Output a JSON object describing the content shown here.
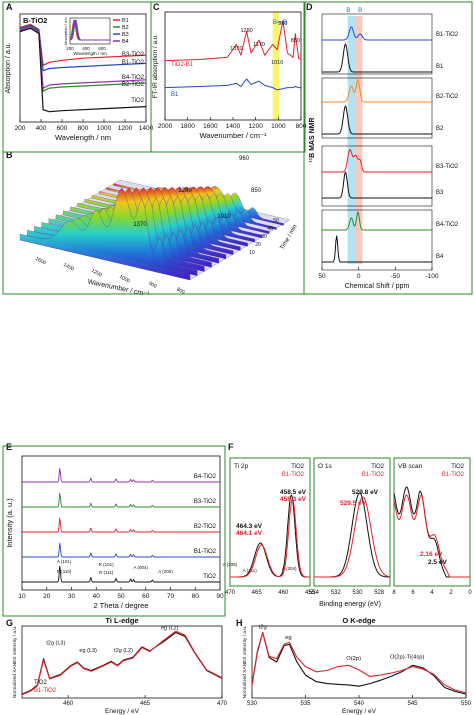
{
  "chart_data": [
    {
      "panel": "A",
      "type": "line",
      "title": "B-TiO2",
      "xlabel": "Wavelength / nm",
      "ylabel": "Absorption / a.u.",
      "xlim": [
        200,
        1400
      ],
      "xticks": [
        200,
        400,
        600,
        800,
        1000,
        1200,
        1400
      ],
      "legend": [
        "B1",
        "B2",
        "B3",
        "B4"
      ],
      "legend_position": "top-right",
      "curve_labels": [
        "B3-TiO2",
        "B1-TiO2",
        "B4-TiO2",
        "B2-TiO2",
        "TiO2"
      ],
      "inset": {
        "xlabel": "Wavelength / nm",
        "ylabel": "Absorption / a.u.",
        "xticks": [
          200,
          400,
          600
        ]
      },
      "series": [
        {
          "name": "B1",
          "color": "#e8202a",
          "x": [
            200,
            300,
            380,
            420,
            480,
            600,
            800,
            1000,
            1200,
            1400
          ],
          "y": [
            0.92,
            0.95,
            0.9,
            0.55,
            0.58,
            0.6,
            0.62,
            0.63,
            0.64,
            0.65
          ]
        },
        {
          "name": "B2",
          "color": "#2a8a2a",
          "x": [
            200,
            300,
            380,
            420,
            480,
            600,
            800,
            1000,
            1200,
            1400
          ],
          "y": [
            0.9,
            0.93,
            0.88,
            0.3,
            0.33,
            0.34,
            0.35,
            0.36,
            0.37,
            0.38
          ]
        },
        {
          "name": "B3",
          "color": "#2848c8",
          "x": [
            200,
            300,
            380,
            420,
            480,
            600,
            800,
            1000,
            1200,
            1400
          ],
          "y": [
            0.91,
            0.94,
            0.89,
            0.5,
            0.52,
            0.53,
            0.54,
            0.55,
            0.56,
            0.57
          ]
        },
        {
          "name": "B4",
          "color": "#9a2fb0",
          "x": [
            200,
            300,
            380,
            420,
            480,
            600,
            800,
            1000,
            1200,
            1400
          ],
          "y": [
            0.89,
            0.92,
            0.87,
            0.33,
            0.36,
            0.37,
            0.38,
            0.39,
            0.4,
            0.41
          ]
        },
        {
          "name": "TiO2",
          "color": "#111111",
          "x": [
            200,
            300,
            380,
            420,
            480,
            600,
            800,
            1000,
            1200,
            1400
          ],
          "y": [
            0.88,
            0.91,
            0.86,
            0.12,
            0.1,
            0.11,
            0.12,
            0.13,
            0.14,
            0.15
          ]
        }
      ]
    },
    {
      "panel": "C",
      "type": "line",
      "xlabel": "Wavenumber / cm⁻¹",
      "ylabel": "FT-IR absorption / a.u.",
      "xlim": [
        2000,
        800
      ],
      "xticks": [
        2000,
        1800,
        1600,
        1400,
        1200,
        1000,
        800
      ],
      "curve_labels": [
        "TiO2-B1",
        "B1"
      ],
      "peak_labels": [
        "1370",
        "1280",
        "1170",
        "960",
        "1010",
        "850"
      ],
      "series": [
        {
          "name": "TiO2-B1",
          "color": "#e8202a",
          "x": [
            2000,
            1700,
            1450,
            1370,
            1330,
            1280,
            1240,
            1170,
            1120,
            1050,
            1010,
            960,
            920,
            870,
            850,
            820,
            800
          ],
          "y": [
            0.55,
            0.56,
            0.58,
            0.7,
            0.6,
            0.82,
            0.62,
            0.74,
            0.6,
            0.7,
            0.65,
            0.92,
            0.62,
            0.58,
            0.8,
            0.57,
            0.56
          ]
        },
        {
          "name": "B1",
          "color": "#2848c8",
          "x": [
            2000,
            1700,
            1450,
            1370,
            1330,
            1280,
            1240,
            1170,
            1120,
            1050,
            1010,
            960,
            920,
            870,
            850,
            820,
            800
          ],
          "y": [
            0.3,
            0.31,
            0.32,
            0.34,
            0.31,
            0.38,
            0.33,
            0.36,
            0.32,
            0.3,
            0.28,
            0.29,
            0.3,
            0.3,
            0.31,
            0.3,
            0.3
          ]
        }
      ]
    },
    {
      "panel": "D",
      "type": "line",
      "xlabel": "Chemical Shift / ppm",
      "ylabel": "¹¹B MAS NMR",
      "xlim": [
        50,
        -100
      ],
      "xticks": [
        50,
        0,
        -50,
        -100
      ],
      "curve_labels": [
        "B1-TiO2",
        "B1",
        "B2-TiO2",
        "B2",
        "B3-TiO2",
        "B3",
        "B4-TiO2",
        "B4"
      ],
      "series": [
        {
          "name": "B1-TiO2",
          "color": "#2848c8"
        },
        {
          "name": "B1",
          "color": "#111111"
        },
        {
          "name": "B2-TiO2",
          "color": "#f08a24"
        },
        {
          "name": "B2",
          "color": "#111111"
        },
        {
          "name": "B3-TiO2",
          "color": "#e8202a"
        },
        {
          "name": "B3",
          "color": "#111111"
        },
        {
          "name": "B4-TiO2",
          "color": "#2a8a2a"
        },
        {
          "name": "B4",
          "color": "#111111"
        }
      ]
    },
    {
      "panel": "B",
      "type": "area",
      "xlabel": "Wavenumber / cm⁻¹",
      "ylabel": "Time / min",
      "peak_labels": [
        "1280",
        "960",
        "1370",
        "1010",
        "850"
      ],
      "x_ticks": [
        "1600",
        "1400",
        "1200",
        "1000",
        "900",
        "800"
      ],
      "y_ticks": [
        "50",
        "40",
        "30",
        "20",
        "10"
      ]
    },
    {
      "panel": "E",
      "type": "line",
      "xlabel": "2 Theta / degree",
      "ylabel": "Intensity (a. u.)",
      "xlim": [
        10,
        90
      ],
      "xticks": [
        10,
        20,
        30,
        40,
        50,
        60,
        70,
        80,
        90
      ],
      "curve_labels": [
        "B4-TiO2",
        "B3-TiO2",
        "B2-TiO2",
        "B1-TiO2",
        "TiO2"
      ],
      "peak_labels": [
        "A (101)",
        "R (110)",
        "R (101)",
        "A (004)",
        "R (111)",
        "A (200)",
        "A (105)",
        "A (211)",
        "A (204)"
      ],
      "peaks_2theta": [
        25.3,
        37.8,
        48.0,
        53.9,
        55.1,
        62.7
      ],
      "series": [
        {
          "name": "B4-TiO2",
          "color": "#9a2fb0"
        },
        {
          "name": "B3-TiO2",
          "color": "#2a8a2a"
        },
        {
          "name": "B2-TiO2",
          "color": "#e8202a"
        },
        {
          "name": "B1-TiO2",
          "color": "#2848c8"
        },
        {
          "name": "TiO2",
          "color": "#111111"
        }
      ]
    },
    {
      "panel": "F",
      "type": "line",
      "xlabel": "Binding energy (eV)",
      "subpanels": [
        {
          "title": "Ti 2p",
          "xticks": [
            470,
            465,
            460,
            455
          ],
          "legend": [
            "TiO2",
            "B1-TiO2"
          ],
          "annotations": [
            "458.5 eV",
            "458.3 eV",
            "464.3 eV",
            "464.1 eV"
          ]
        },
        {
          "title": "O 1s",
          "xticks": [
            534,
            532,
            530,
            528
          ],
          "legend": [
            "TiO2",
            "B1-TiO2"
          ],
          "annotations": [
            "529.8 eV",
            "529.5 eV"
          ]
        },
        {
          "title": "VB scan",
          "xticks": [
            8,
            6,
            4,
            2,
            0
          ],
          "legend": [
            "TiO2",
            "B1-TiO2"
          ],
          "annotations": [
            "2.16 eV",
            "2.5 eV"
          ]
        }
      ],
      "series": [
        {
          "name": "TiO2",
          "color": "#111111"
        },
        {
          "name": "B1-TiO2",
          "color": "#e8202a"
        }
      ]
    },
    {
      "panel": "G",
      "type": "line",
      "title": "Ti L-edge",
      "xlabel": "Energy / eV",
      "ylabel": "Normalized XANES intensity / a.u.",
      "xlim": [
        457,
        470
      ],
      "xticks": [
        460,
        465,
        470
      ],
      "legend": [
        "TiO2",
        "B1-TiO2"
      ],
      "legend_position": "bottom-left",
      "annotations": [
        "t2g (L3)",
        "eg (L3)",
        "t2g (L2)",
        "eg (L2)"
      ],
      "series": [
        {
          "name": "TiO2",
          "color": "#111111",
          "x": [
            457,
            457.6,
            458,
            458.4,
            458.8,
            459.5,
            460.2,
            460.6,
            461,
            461.5,
            462.3,
            462.8,
            463.2,
            463.6,
            464.2,
            464.8,
            465.3,
            466.2,
            467,
            467.6,
            468.2,
            469,
            470
          ],
          "y": [
            0.06,
            0.12,
            0.2,
            0.6,
            0.3,
            0.36,
            0.5,
            0.55,
            0.46,
            0.42,
            0.5,
            0.56,
            0.5,
            0.58,
            0.62,
            0.78,
            0.72,
            0.86,
            1.0,
            0.94,
            0.7,
            0.42,
            0.3
          ]
        },
        {
          "name": "B1-TiO2",
          "color": "#e8202a",
          "x": [
            457,
            457.6,
            458,
            458.4,
            458.8,
            459.5,
            460.2,
            460.6,
            461,
            461.5,
            462.3,
            462.8,
            463.2,
            463.6,
            464.2,
            464.8,
            465.3,
            466.2,
            467,
            467.6,
            468.2,
            469,
            470
          ],
          "y": [
            0.05,
            0.11,
            0.19,
            0.58,
            0.29,
            0.35,
            0.49,
            0.54,
            0.45,
            0.41,
            0.49,
            0.55,
            0.49,
            0.57,
            0.61,
            0.77,
            0.71,
            0.88,
            1.02,
            0.96,
            0.71,
            0.43,
            0.31
          ]
        }
      ]
    },
    {
      "panel": "H",
      "type": "line",
      "title": "O K-edge",
      "xlabel": "Energy / eV",
      "ylabel": "Normalized XANES intensity / a.u.",
      "xlim": [
        530,
        550
      ],
      "xticks": [
        530,
        535,
        540,
        545,
        550
      ],
      "annotations": [
        "t2g",
        "eg",
        "O(2p)",
        "O(2p)-Ti(4sp)"
      ],
      "series": [
        {
          "name": "TiO2",
          "color": "#111111",
          "x": [
            530,
            530.5,
            531,
            531.6,
            532.3,
            533,
            533.5,
            534.2,
            535,
            536,
            537,
            538,
            539,
            540,
            541,
            542,
            543,
            544,
            545,
            546,
            547,
            548,
            549,
            550
          ],
          "y": [
            0.2,
            0.7,
            1.0,
            0.62,
            0.55,
            0.8,
            0.82,
            0.55,
            0.35,
            0.25,
            0.22,
            0.21,
            0.2,
            0.18,
            0.22,
            0.27,
            0.33,
            0.4,
            0.5,
            0.46,
            0.34,
            0.16,
            0.1,
            0.06
          ]
        },
        {
          "name": "B1-TiO2",
          "color": "#e8202a",
          "x": [
            530,
            530.5,
            531,
            531.6,
            532.3,
            533,
            533.5,
            534.2,
            535,
            536,
            537,
            538,
            539,
            540,
            541,
            542,
            543,
            544,
            545,
            546,
            547,
            548,
            549,
            550
          ],
          "y": [
            0.2,
            0.72,
            1.0,
            0.64,
            0.6,
            0.82,
            0.85,
            0.62,
            0.48,
            0.4,
            0.42,
            0.48,
            0.5,
            0.43,
            0.33,
            0.35,
            0.38,
            0.42,
            0.48,
            0.44,
            0.36,
            0.2,
            0.12,
            0.08
          ]
        }
      ]
    }
  ]
}
